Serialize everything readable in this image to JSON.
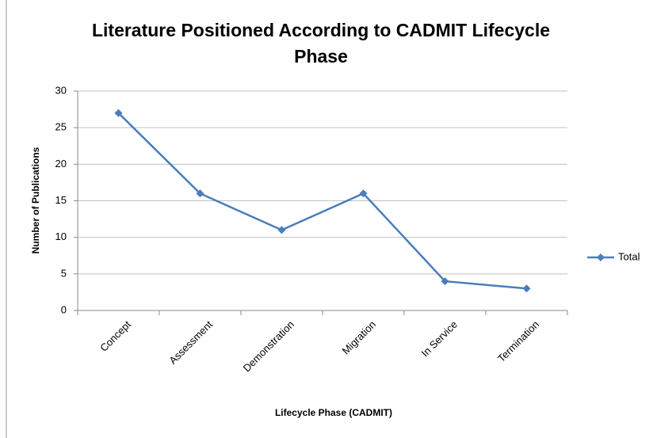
{
  "chart_data": {
    "type": "line",
    "title": "Literature Positioned According to CADMIT Lifecycle Phase",
    "x_label": "Lifecycle Phase (CADMIT)",
    "y_label": "Number of Publications",
    "categories": [
      "Concept",
      "Assessment",
      "Demonstration",
      "Migration",
      "In Service",
      "Termination"
    ],
    "series": [
      {
        "name": "Total",
        "color": "#4a7ebb",
        "values": [
          27,
          16,
          11,
          16,
          4,
          3
        ]
      }
    ],
    "ylim": [
      0,
      30
    ],
    "yticks": [
      0,
      5,
      10,
      15,
      20,
      25,
      30
    ],
    "grid": true,
    "legend": "right"
  }
}
